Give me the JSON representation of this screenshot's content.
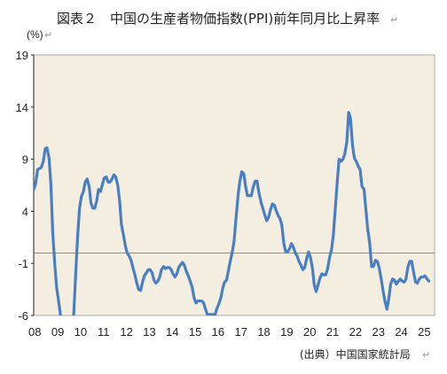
{
  "title": "図表２　中国の生産者物価指数(PPI)前年同月比上昇率",
  "edit_mark": "↵",
  "source": "(出典）中国国家統計局",
  "colors": {
    "plot_bg": "#f3eee0",
    "line": "#4a7ec3",
    "zero_line": "#7f7f7f",
    "axis": "#222222"
  },
  "chart_data": {
    "type": "line",
    "title": "図表２　中国の生産者物価指数(PPI)前年同月比上昇率",
    "ylabel": "(%)",
    "xlabel": "",
    "ylim": [
      -6,
      19
    ],
    "yticks": [
      19,
      14,
      9,
      4,
      -1,
      -6
    ],
    "xlim": [
      2008.0,
      2025.5
    ],
    "x_tick_labels": [
      "08",
      "09",
      "10",
      "11",
      "12",
      "13",
      "14",
      "15",
      "16",
      "17",
      "18",
      "19",
      "20",
      "21",
      "22",
      "23",
      "24",
      "25"
    ],
    "grid": false,
    "legend": "none",
    "series": [
      {
        "points": [
          [
            2008.0,
            6.1
          ],
          [
            2008.08,
            6.6
          ],
          [
            2008.17,
            8.0
          ],
          [
            2008.25,
            8.1
          ],
          [
            2008.33,
            8.2
          ],
          [
            2008.42,
            8.8
          ],
          [
            2008.5,
            10.0
          ],
          [
            2008.58,
            10.1
          ],
          [
            2008.67,
            9.1
          ],
          [
            2008.75,
            6.6
          ],
          [
            2008.83,
            2.0
          ],
          [
            2008.92,
            -1.1
          ],
          [
            2009.0,
            -3.3
          ],
          [
            2009.08,
            -4.5
          ],
          [
            2009.17,
            -6.0
          ],
          [
            2009.25,
            -6.6
          ],
          [
            2009.33,
            -7.2
          ],
          [
            2009.42,
            -7.8
          ],
          [
            2009.5,
            -8.2
          ],
          [
            2009.58,
            -7.9
          ],
          [
            2009.67,
            -7.0
          ],
          [
            2009.75,
            -5.8
          ],
          [
            2009.83,
            -2.1
          ],
          [
            2009.92,
            1.7
          ],
          [
            2010.0,
            4.3
          ],
          [
            2010.08,
            5.4
          ],
          [
            2010.17,
            5.9
          ],
          [
            2010.25,
            6.8
          ],
          [
            2010.33,
            7.1
          ],
          [
            2010.42,
            6.4
          ],
          [
            2010.5,
            4.8
          ],
          [
            2010.58,
            4.3
          ],
          [
            2010.67,
            4.3
          ],
          [
            2010.75,
            5.0
          ],
          [
            2010.83,
            6.1
          ],
          [
            2010.92,
            5.9
          ],
          [
            2011.0,
            6.6
          ],
          [
            2011.08,
            7.2
          ],
          [
            2011.17,
            7.3
          ],
          [
            2011.25,
            6.8
          ],
          [
            2011.33,
            6.8
          ],
          [
            2011.42,
            7.1
          ],
          [
            2011.5,
            7.5
          ],
          [
            2011.58,
            7.3
          ],
          [
            2011.67,
            6.5
          ],
          [
            2011.75,
            5.0
          ],
          [
            2011.83,
            2.7
          ],
          [
            2011.92,
            1.7
          ],
          [
            2012.0,
            0.7
          ],
          [
            2012.08,
            0.0
          ],
          [
            2012.17,
            -0.3
          ],
          [
            2012.25,
            -0.7
          ],
          [
            2012.33,
            -1.4
          ],
          [
            2012.42,
            -2.1
          ],
          [
            2012.5,
            -2.9
          ],
          [
            2012.58,
            -3.5
          ],
          [
            2012.67,
            -3.6
          ],
          [
            2012.75,
            -2.8
          ],
          [
            2012.83,
            -2.2
          ],
          [
            2012.92,
            -1.9
          ],
          [
            2013.0,
            -1.6
          ],
          [
            2013.08,
            -1.6
          ],
          [
            2013.17,
            -1.9
          ],
          [
            2013.25,
            -2.6
          ],
          [
            2013.33,
            -2.9
          ],
          [
            2013.42,
            -2.7
          ],
          [
            2013.5,
            -2.3
          ],
          [
            2013.58,
            -1.6
          ],
          [
            2013.67,
            -1.3
          ],
          [
            2013.75,
            -1.5
          ],
          [
            2013.83,
            -1.4
          ],
          [
            2013.92,
            -1.4
          ],
          [
            2014.0,
            -1.6
          ],
          [
            2014.08,
            -2.0
          ],
          [
            2014.17,
            -2.3
          ],
          [
            2014.25,
            -2.0
          ],
          [
            2014.33,
            -1.4
          ],
          [
            2014.42,
            -1.1
          ],
          [
            2014.5,
            -0.9
          ],
          [
            2014.58,
            -1.2
          ],
          [
            2014.67,
            -1.8
          ],
          [
            2014.75,
            -2.2
          ],
          [
            2014.83,
            -2.7
          ],
          [
            2014.92,
            -3.3
          ],
          [
            2015.0,
            -4.3
          ],
          [
            2015.08,
            -4.8
          ],
          [
            2015.17,
            -4.6
          ],
          [
            2015.25,
            -4.6
          ],
          [
            2015.33,
            -4.6
          ],
          [
            2015.42,
            -4.8
          ],
          [
            2015.5,
            -5.4
          ],
          [
            2015.58,
            -5.9
          ],
          [
            2015.67,
            -5.9
          ],
          [
            2015.75,
            -5.9
          ],
          [
            2015.83,
            -5.9
          ],
          [
            2015.92,
            -5.9
          ],
          [
            2016.0,
            -5.3
          ],
          [
            2016.08,
            -4.9
          ],
          [
            2016.17,
            -4.3
          ],
          [
            2016.25,
            -3.4
          ],
          [
            2016.33,
            -2.8
          ],
          [
            2016.42,
            -2.6
          ],
          [
            2016.5,
            -1.7
          ],
          [
            2016.58,
            -0.8
          ],
          [
            2016.67,
            0.1
          ],
          [
            2016.75,
            1.2
          ],
          [
            2016.83,
            3.3
          ],
          [
            2016.92,
            5.5
          ],
          [
            2017.0,
            6.9
          ],
          [
            2017.08,
            7.8
          ],
          [
            2017.17,
            7.6
          ],
          [
            2017.25,
            6.4
          ],
          [
            2017.33,
            5.5
          ],
          [
            2017.42,
            5.5
          ],
          [
            2017.5,
            5.5
          ],
          [
            2017.58,
            6.3
          ],
          [
            2017.67,
            6.9
          ],
          [
            2017.75,
            6.9
          ],
          [
            2017.83,
            5.8
          ],
          [
            2017.92,
            4.9
          ],
          [
            2018.0,
            4.3
          ],
          [
            2018.08,
            3.7
          ],
          [
            2018.17,
            3.1
          ],
          [
            2018.25,
            3.4
          ],
          [
            2018.33,
            4.1
          ],
          [
            2018.42,
            4.7
          ],
          [
            2018.5,
            4.6
          ],
          [
            2018.58,
            4.1
          ],
          [
            2018.67,
            3.6
          ],
          [
            2018.75,
            3.3
          ],
          [
            2018.83,
            2.7
          ],
          [
            2018.92,
            0.9
          ],
          [
            2019.0,
            0.1
          ],
          [
            2019.08,
            0.1
          ],
          [
            2019.17,
            0.4
          ],
          [
            2019.25,
            0.9
          ],
          [
            2019.33,
            0.6
          ],
          [
            2019.42,
            0.0
          ],
          [
            2019.5,
            -0.3
          ],
          [
            2019.58,
            -0.8
          ],
          [
            2019.67,
            -1.2
          ],
          [
            2019.75,
            -1.6
          ],
          [
            2019.83,
            -1.4
          ],
          [
            2019.92,
            -0.5
          ],
          [
            2020.0,
            0.1
          ],
          [
            2020.08,
            -0.4
          ],
          [
            2020.17,
            -1.5
          ],
          [
            2020.25,
            -3.1
          ],
          [
            2020.33,
            -3.7
          ],
          [
            2020.42,
            -3.0
          ],
          [
            2020.5,
            -2.4
          ],
          [
            2020.58,
            -2.0
          ],
          [
            2020.67,
            -2.1
          ],
          [
            2020.75,
            -2.1
          ],
          [
            2020.83,
            -1.5
          ],
          [
            2020.92,
            -0.4
          ],
          [
            2021.0,
            0.3
          ],
          [
            2021.08,
            1.7
          ],
          [
            2021.17,
            4.4
          ],
          [
            2021.25,
            6.8
          ],
          [
            2021.33,
            9.0
          ],
          [
            2021.42,
            8.8
          ],
          [
            2021.5,
            9.0
          ],
          [
            2021.58,
            9.5
          ],
          [
            2021.67,
            10.7
          ],
          [
            2021.75,
            13.5
          ],
          [
            2021.83,
            12.9
          ],
          [
            2021.92,
            10.3
          ],
          [
            2022.0,
            9.1
          ],
          [
            2022.08,
            8.8
          ],
          [
            2022.17,
            8.3
          ],
          [
            2022.25,
            8.0
          ],
          [
            2022.33,
            6.4
          ],
          [
            2022.42,
            6.1
          ],
          [
            2022.5,
            4.2
          ],
          [
            2022.58,
            2.3
          ],
          [
            2022.67,
            0.9
          ],
          [
            2022.75,
            -1.3
          ],
          [
            2022.83,
            -1.3
          ],
          [
            2022.92,
            -0.7
          ],
          [
            2023.0,
            -0.8
          ],
          [
            2023.08,
            -1.4
          ],
          [
            2023.17,
            -2.5
          ],
          [
            2023.25,
            -3.6
          ],
          [
            2023.33,
            -4.6
          ],
          [
            2023.42,
            -5.4
          ],
          [
            2023.5,
            -4.4
          ],
          [
            2023.58,
            -3.0
          ],
          [
            2023.67,
            -2.5
          ],
          [
            2023.75,
            -2.6
          ],
          [
            2023.83,
            -3.0
          ],
          [
            2023.92,
            -2.7
          ],
          [
            2024.0,
            -2.5
          ],
          [
            2024.08,
            -2.7
          ],
          [
            2024.17,
            -2.8
          ],
          [
            2024.25,
            -2.5
          ],
          [
            2024.33,
            -1.4
          ],
          [
            2024.42,
            -0.8
          ],
          [
            2024.5,
            -0.8
          ],
          [
            2024.58,
            -1.8
          ],
          [
            2024.67,
            -2.8
          ],
          [
            2024.75,
            -2.9
          ],
          [
            2024.83,
            -2.5
          ],
          [
            2024.92,
            -2.3
          ],
          [
            2025.0,
            -2.3
          ],
          [
            2025.08,
            -2.2
          ],
          [
            2025.17,
            -2.5
          ],
          [
            2025.25,
            -2.7
          ]
        ]
      }
    ]
  }
}
